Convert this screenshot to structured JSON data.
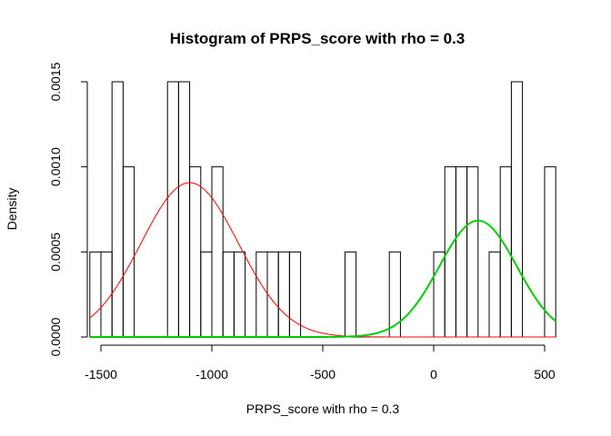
{
  "chart_data": {
    "type": "histogram",
    "title": "Histogram of PRPS_score with rho = 0.3",
    "xlabel": "PRPS_score with rho = 0.3",
    "ylabel": "Density",
    "xlim": [
      -1550,
      550
    ],
    "ylim": [
      0,
      0.0015
    ],
    "grid": false,
    "legend": "none",
    "x_ticks": [
      -1500,
      -1000,
      -500,
      0,
      500
    ],
    "x_tick_labels": [
      "-1500",
      "-1000",
      "-500",
      "0",
      "500"
    ],
    "y_ticks": [
      0,
      0.0005,
      0.001,
      0.0015
    ],
    "y_tick_labels": [
      "0.0000",
      "0.0005",
      "0.0010",
      "0.0015"
    ],
    "bin_width": 50,
    "bins": [
      {
        "start": -1550,
        "end": -1500,
        "density": 0.0005
      },
      {
        "start": -1500,
        "end": -1450,
        "density": 0.0005
      },
      {
        "start": -1450,
        "end": -1400,
        "density": 0.0015
      },
      {
        "start": -1400,
        "end": -1350,
        "density": 0.001
      },
      {
        "start": -1200,
        "end": -1150,
        "density": 0.0015
      },
      {
        "start": -1150,
        "end": -1100,
        "density": 0.0015
      },
      {
        "start": -1100,
        "end": -1050,
        "density": 0.001
      },
      {
        "start": -1050,
        "end": -1000,
        "density": 0.0005
      },
      {
        "start": -1000,
        "end": -950,
        "density": 0.001
      },
      {
        "start": -950,
        "end": -900,
        "density": 0.0005
      },
      {
        "start": -900,
        "end": -850,
        "density": 0.0005
      },
      {
        "start": -800,
        "end": -750,
        "density": 0.0005
      },
      {
        "start": -750,
        "end": -700,
        "density": 0.0005
      },
      {
        "start": -700,
        "end": -650,
        "density": 0.0005
      },
      {
        "start": -650,
        "end": -600,
        "density": 0.0005
      },
      {
        "start": -400,
        "end": -350,
        "density": 0.0005
      },
      {
        "start": -200,
        "end": -150,
        "density": 0.0005
      },
      {
        "start": 0,
        "end": 50,
        "density": 0.0005
      },
      {
        "start": 50,
        "end": 100,
        "density": 0.001
      },
      {
        "start": 100,
        "end": 150,
        "density": 0.001
      },
      {
        "start": 150,
        "end": 200,
        "density": 0.001
      },
      {
        "start": 250,
        "end": 300,
        "density": 0.0005
      },
      {
        "start": 300,
        "end": 350,
        "density": 0.001
      },
      {
        "start": 350,
        "end": 400,
        "density": 0.0015
      },
      {
        "start": 500,
        "end": 550,
        "density": 0.001
      }
    ],
    "curves": [
      {
        "color": "#ff0000",
        "line_width": 1,
        "type": "normal-density",
        "mean": -1100,
        "sd": 220,
        "weight": 0.5
      },
      {
        "color": "#00cd00",
        "line_width": 2,
        "type": "normal-density",
        "mean": 200,
        "sd": 175,
        "weight": 0.3
      }
    ]
  }
}
